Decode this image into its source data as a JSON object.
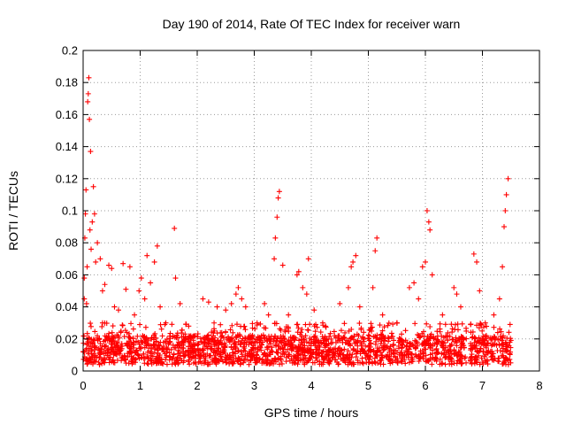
{
  "chart_data": {
    "type": "scatter",
    "title": "Day 190 of 2014, Rate Of TEC Index for receiver warn",
    "xlabel": "GPS time / hours",
    "ylabel": "ROTI / TECUs",
    "xlim": [
      0,
      8
    ],
    "ylim": [
      0,
      0.2
    ],
    "x_ticks": [
      0,
      1,
      2,
      3,
      4,
      5,
      6,
      7,
      8
    ],
    "x_tick_labels": [
      "0",
      "1",
      "2",
      "3",
      "4",
      "5",
      "6",
      "7",
      "8"
    ],
    "y_ticks": [
      0,
      0.02,
      0.04,
      0.06,
      0.08,
      0.1,
      0.12,
      0.14,
      0.16,
      0.18,
      0.2
    ],
    "y_tick_labels": [
      "0",
      "0.02",
      "0.04",
      "0.06",
      "0.08",
      "0.1",
      "0.12",
      "0.14",
      "0.16",
      "0.18",
      "0.2"
    ],
    "grid": true,
    "marker": "+",
    "color": "#ff0000",
    "series": [
      {
        "name": "ROTI",
        "points": [
          [
            0.0,
            0.012
          ],
          [
            0.02,
            0.045
          ],
          [
            0.02,
            0.058
          ],
          [
            0.03,
            0.083
          ],
          [
            0.04,
            0.098
          ],
          [
            0.05,
            0.113
          ],
          [
            0.06,
            0.042
          ],
          [
            0.07,
            0.065
          ],
          [
            0.08,
            0.168
          ],
          [
            0.09,
            0.173
          ],
          [
            0.1,
            0.183
          ],
          [
            0.11,
            0.157
          ],
          [
            0.12,
            0.088
          ],
          [
            0.13,
            0.137
          ],
          [
            0.14,
            0.076
          ],
          [
            0.16,
            0.093
          ],
          [
            0.18,
            0.115
          ],
          [
            0.2,
            0.098
          ],
          [
            0.22,
            0.068
          ],
          [
            0.25,
            0.08
          ],
          [
            0.3,
            0.07
          ],
          [
            0.34,
            0.05
          ],
          [
            0.38,
            0.054
          ],
          [
            0.45,
            0.066
          ],
          [
            0.5,
            0.064
          ],
          [
            0.55,
            0.04
          ],
          [
            0.62,
            0.038
          ],
          [
            0.7,
            0.067
          ],
          [
            0.75,
            0.051
          ],
          [
            0.82,
            0.065
          ],
          [
            0.9,
            0.035
          ],
          [
            0.98,
            0.05
          ],
          [
            1.02,
            0.058
          ],
          [
            1.08,
            0.045
          ],
          [
            1.12,
            0.072
          ],
          [
            1.18,
            0.055
          ],
          [
            1.25,
            0.068
          ],
          [
            1.3,
            0.078
          ],
          [
            1.35,
            0.04
          ],
          [
            1.45,
            0.03
          ],
          [
            1.6,
            0.089
          ],
          [
            1.62,
            0.058
          ],
          [
            1.7,
            0.042
          ],
          [
            1.85,
            0.028
          ],
          [
            2.1,
            0.045
          ],
          [
            2.2,
            0.043
          ],
          [
            2.35,
            0.04
          ],
          [
            2.5,
            0.038
          ],
          [
            2.6,
            0.042
          ],
          [
            2.68,
            0.048
          ],
          [
            2.72,
            0.052
          ],
          [
            2.78,
            0.045
          ],
          [
            2.85,
            0.04
          ],
          [
            3.05,
            0.03
          ],
          [
            3.18,
            0.042
          ],
          [
            3.25,
            0.035
          ],
          [
            3.35,
            0.07
          ],
          [
            3.37,
            0.083
          ],
          [
            3.4,
            0.096
          ],
          [
            3.42,
            0.108
          ],
          [
            3.44,
            0.112
          ],
          [
            3.5,
            0.066
          ],
          [
            3.6,
            0.035
          ],
          [
            3.75,
            0.06
          ],
          [
            3.78,
            0.062
          ],
          [
            3.85,
            0.052
          ],
          [
            3.92,
            0.048
          ],
          [
            3.95,
            0.07
          ],
          [
            4.05,
            0.038
          ],
          [
            4.2,
            0.03
          ],
          [
            4.5,
            0.042
          ],
          [
            4.65,
            0.052
          ],
          [
            4.7,
            0.065
          ],
          [
            4.73,
            0.068
          ],
          [
            4.78,
            0.072
          ],
          [
            4.85,
            0.04
          ],
          [
            5.08,
            0.052
          ],
          [
            5.12,
            0.075
          ],
          [
            5.15,
            0.083
          ],
          [
            5.25,
            0.035
          ],
          [
            5.5,
            0.03
          ],
          [
            5.72,
            0.052
          ],
          [
            5.8,
            0.055
          ],
          [
            5.88,
            0.045
          ],
          [
            5.95,
            0.065
          ],
          [
            6.0,
            0.068
          ],
          [
            6.03,
            0.1
          ],
          [
            6.06,
            0.093
          ],
          [
            6.08,
            0.088
          ],
          [
            6.12,
            0.06
          ],
          [
            6.3,
            0.035
          ],
          [
            6.5,
            0.052
          ],
          [
            6.55,
            0.048
          ],
          [
            6.62,
            0.04
          ],
          [
            6.85,
            0.073
          ],
          [
            6.9,
            0.068
          ],
          [
            6.95,
            0.05
          ],
          [
            7.05,
            0.03
          ],
          [
            7.2,
            0.035
          ],
          [
            7.3,
            0.045
          ],
          [
            7.35,
            0.065
          ],
          [
            7.38,
            0.09
          ],
          [
            7.4,
            0.1
          ],
          [
            7.42,
            0.11
          ],
          [
            7.45,
            0.12
          ],
          [
            7.48,
            0.018
          ]
        ]
      }
    ],
    "dense_band": {
      "description": "background bulk of measurements",
      "segments": [
        [
          0.0,
          1.98
        ],
        [
          2.0,
          6.72
        ],
        [
          6.78,
          7.5
        ]
      ],
      "y_range": [
        0.004,
        0.03
      ]
    }
  }
}
